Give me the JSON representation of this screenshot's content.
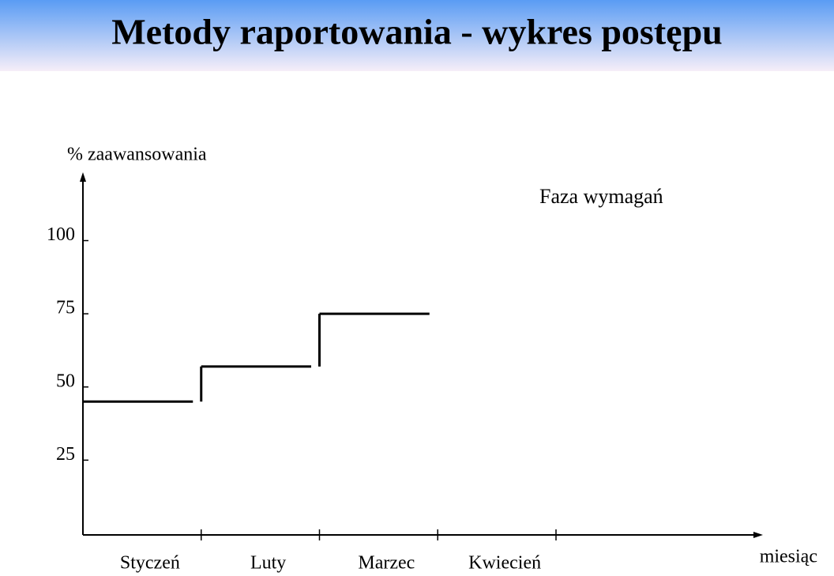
{
  "chart_data": {
    "type": "step",
    "title": "Metody raportowania - wykres postępu",
    "y_label": "% zaawansowania",
    "x_label": "miesiąc",
    "annotation": "Faza wymagań",
    "categories": [
      "Styczeń",
      "Luty",
      "Marzec",
      "Kwiecień"
    ],
    "values": [
      45,
      57,
      75,
      null
    ],
    "color": "#000000",
    "ylim": [
      0,
      122
    ],
    "yticks": [
      25,
      50,
      75,
      100
    ]
  }
}
